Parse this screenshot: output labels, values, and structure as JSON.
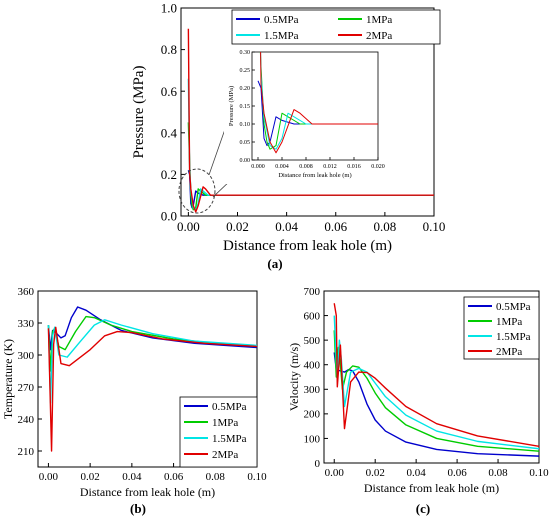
{
  "chart_data": [
    {
      "id": "a",
      "type": "line",
      "panel_label": "(a)",
      "xlabel": "Distance from leak hole (m)",
      "ylabel": "Pressure (MPa)",
      "xlim": [
        -0.003,
        0.1
      ],
      "ylim": [
        0,
        1.0
      ],
      "xticks": [
        "0.00",
        "0.02",
        "0.04",
        "0.06",
        "0.08",
        "0.10"
      ],
      "yticks": [
        "0.0",
        "0.2",
        "0.4",
        "0.6",
        "0.8",
        "1.0"
      ],
      "legend": "top-left",
      "series": [
        {
          "name": "0.5MPa",
          "color": "#0000cc",
          "points": [
            [
              0,
              0.22
            ],
            [
              0.0005,
              0.2
            ],
            [
              0.001,
              0.06
            ],
            [
              0.0015,
              0.04
            ],
            [
              0.002,
              0.05
            ],
            [
              0.003,
              0.12
            ],
            [
              0.004,
              0.11
            ],
            [
              0.006,
              0.1
            ],
            [
              0.1,
              0.1
            ]
          ]
        },
        {
          "name": "1MPa",
          "color": "#00cc00",
          "points": [
            [
              0,
              0.45
            ],
            [
              0.0005,
              0.26
            ],
            [
              0.001,
              0.1
            ],
            [
              0.0015,
              0.05
            ],
            [
              0.002,
              0.03
            ],
            [
              0.003,
              0.04
            ],
            [
              0.004,
              0.13
            ],
            [
              0.005,
              0.12
            ],
            [
              0.007,
              0.1
            ],
            [
              0.1,
              0.1
            ]
          ]
        },
        {
          "name": "1.5MPa",
          "color": "#00e5e5",
          "points": [
            [
              0,
              0.66
            ],
            [
              0.0005,
              0.24
            ],
            [
              0.001,
              0.12
            ],
            [
              0.002,
              0.04
            ],
            [
              0.003,
              0.03
            ],
            [
              0.004,
              0.06
            ],
            [
              0.005,
              0.13
            ],
            [
              0.006,
              0.12
            ],
            [
              0.008,
              0.1
            ],
            [
              0.1,
              0.1
            ]
          ]
        },
        {
          "name": "2MPa",
          "color": "#e00000",
          "points": [
            [
              0,
              0.9
            ],
            [
              0.0005,
              0.21
            ],
            [
              0.001,
              0.13
            ],
            [
              0.002,
              0.05
            ],
            [
              0.003,
              0.02
            ],
            [
              0.004,
              0.05
            ],
            [
              0.006,
              0.14
            ],
            [
              0.007,
              0.13
            ],
            [
              0.009,
              0.1
            ],
            [
              0.1,
              0.1
            ]
          ]
        }
      ],
      "inset": {
        "xlabel": "Distance from leak hole (m)",
        "ylabel": "Pressure (MPa)",
        "xlim": [
          -0.001,
          0.02
        ],
        "ylim": [
          0,
          0.3
        ],
        "xticks": [
          "0.000",
          "0.004",
          "0.008",
          "0.012",
          "0.016",
          "0.020"
        ],
        "yticks": [
          "0.00",
          "0.05",
          "0.10",
          "0.15",
          "0.20",
          "0.25",
          "0.30"
        ]
      }
    },
    {
      "id": "b",
      "type": "line",
      "panel_label": "(b)",
      "xlabel": "Distance from leak hole (m)",
      "ylabel": "Temperature (K)",
      "xlim": [
        -0.005,
        0.1
      ],
      "ylim": [
        195,
        360
      ],
      "xticks": [
        "0.00",
        "0.02",
        "0.04",
        "0.06",
        "0.08",
        "0.10"
      ],
      "yticks": [
        "210",
        "240",
        "270",
        "300",
        "330",
        "360"
      ],
      "legend": "bottom-right",
      "series": [
        {
          "name": "0.5MPa",
          "color": "#0000cc",
          "points": [
            [
              0,
              328
            ],
            [
              0.001,
              305
            ],
            [
              0.002,
              323
            ],
            [
              0.004,
              320
            ],
            [
              0.006,
              316
            ],
            [
              0.008,
              318
            ],
            [
              0.011,
              335
            ],
            [
              0.014,
              345
            ],
            [
              0.018,
              342
            ],
            [
              0.025,
              333
            ],
            [
              0.035,
              323
            ],
            [
              0.05,
              316
            ],
            [
              0.07,
              311
            ],
            [
              0.1,
              307
            ]
          ]
        },
        {
          "name": "1MPa",
          "color": "#00cc00",
          "points": [
            [
              0,
              328
            ],
            [
              0.001,
              285
            ],
            [
              0.002,
              322
            ],
            [
              0.003,
              325
            ],
            [
              0.005,
              308
            ],
            [
              0.008,
              305
            ],
            [
              0.013,
              322
            ],
            [
              0.018,
              336
            ],
            [
              0.022,
              335
            ],
            [
              0.03,
              328
            ],
            [
              0.04,
              322
            ],
            [
              0.06,
              315
            ],
            [
              0.08,
              311
            ],
            [
              0.1,
              308
            ]
          ]
        },
        {
          "name": "1.5MPa",
          "color": "#00e5e5",
          "points": [
            [
              0,
              328
            ],
            [
              0.001,
              255
            ],
            [
              0.002,
              318
            ],
            [
              0.003,
              326
            ],
            [
              0.005,
              300
            ],
            [
              0.009,
              298
            ],
            [
              0.015,
              312
            ],
            [
              0.022,
              328
            ],
            [
              0.027,
              333
            ],
            [
              0.035,
              328
            ],
            [
              0.05,
              320
            ],
            [
              0.07,
              313
            ],
            [
              0.1,
              309
            ]
          ]
        },
        {
          "name": "2MPa",
          "color": "#e00000",
          "points": [
            [
              0,
              325
            ],
            [
              0.0015,
              210
            ],
            [
              0.0025,
              310
            ],
            [
              0.0035,
              326
            ],
            [
              0.006,
              292
            ],
            [
              0.01,
              290
            ],
            [
              0.02,
              305
            ],
            [
              0.027,
              318
            ],
            [
              0.033,
              322
            ],
            [
              0.04,
              321
            ],
            [
              0.055,
              315
            ],
            [
              0.075,
              311
            ],
            [
              0.1,
              308
            ]
          ]
        }
      ]
    },
    {
      "id": "c",
      "type": "line",
      "panel_label": "(c)",
      "xlabel": "Distance from leak hole (m)",
      "ylabel": "Velocity (m/s)",
      "xlim": [
        -0.005,
        0.1
      ],
      "ylim": [
        0,
        700
      ],
      "xticks": [
        "0.00",
        "0.02",
        "0.04",
        "0.06",
        "0.08",
        "0.10"
      ],
      "yticks": [
        "0",
        "100",
        "200",
        "300",
        "400",
        "500",
        "600",
        "700"
      ],
      "legend": "top-right",
      "series": [
        {
          "name": "0.5MPa",
          "color": "#0000cc",
          "points": [
            [
              0,
              450
            ],
            [
              0.001,
              380
            ],
            [
              0.003,
              375
            ],
            [
              0.005,
              370
            ],
            [
              0.007,
              380
            ],
            [
              0.009,
              375
            ],
            [
              0.012,
              330
            ],
            [
              0.016,
              240
            ],
            [
              0.02,
              175
            ],
            [
              0.025,
              130
            ],
            [
              0.035,
              85
            ],
            [
              0.05,
              55
            ],
            [
              0.07,
              38
            ],
            [
              0.1,
              28
            ]
          ]
        },
        {
          "name": "1MPa",
          "color": "#00cc00",
          "points": [
            [
              0,
              540
            ],
            [
              0.001,
              350
            ],
            [
              0.002,
              470
            ],
            [
              0.003,
              400
            ],
            [
              0.004,
              300
            ],
            [
              0.006,
              370
            ],
            [
              0.009,
              395
            ],
            [
              0.012,
              390
            ],
            [
              0.016,
              345
            ],
            [
              0.02,
              285
            ],
            [
              0.025,
              225
            ],
            [
              0.035,
              155
            ],
            [
              0.05,
              100
            ],
            [
              0.07,
              68
            ],
            [
              0.1,
              48
            ]
          ]
        },
        {
          "name": "1.5MPa",
          "color": "#00e5e5",
          "points": [
            [
              0,
              600
            ],
            [
              0.0015,
              330
            ],
            [
              0.0025,
              500
            ],
            [
              0.0035,
              420
            ],
            [
              0.005,
              230
            ],
            [
              0.008,
              370
            ],
            [
              0.012,
              385
            ],
            [
              0.016,
              370
            ],
            [
              0.02,
              325
            ],
            [
              0.025,
              270
            ],
            [
              0.035,
              195
            ],
            [
              0.05,
              130
            ],
            [
              0.07,
              88
            ],
            [
              0.1,
              58
            ]
          ]
        },
        {
          "name": "2MPa",
          "color": "#e00000",
          "points": [
            [
              0,
              650
            ],
            [
              0.001,
              600
            ],
            [
              0.0015,
              310
            ],
            [
              0.003,
              480
            ],
            [
              0.005,
              140
            ],
            [
              0.008,
              330
            ],
            [
              0.012,
              370
            ],
            [
              0.016,
              368
            ],
            [
              0.02,
              345
            ],
            [
              0.025,
              305
            ],
            [
              0.035,
              230
            ],
            [
              0.05,
              160
            ],
            [
              0.07,
              110
            ],
            [
              0.1,
              68
            ]
          ]
        }
      ]
    }
  ]
}
